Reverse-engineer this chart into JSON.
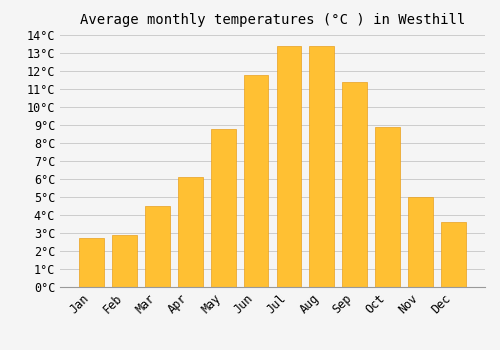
{
  "title": "Average monthly temperatures (°C ) in Westhill",
  "months": [
    "Jan",
    "Feb",
    "Mar",
    "Apr",
    "May",
    "Jun",
    "Jul",
    "Aug",
    "Sep",
    "Oct",
    "Nov",
    "Dec"
  ],
  "values": [
    2.7,
    2.9,
    4.5,
    6.1,
    8.8,
    11.8,
    13.4,
    13.4,
    11.4,
    8.9,
    5.0,
    3.6
  ],
  "bar_color": "#FFC033",
  "bar_edge_color": "#E8A020",
  "background_color": "#F5F5F5",
  "grid_color": "#CCCCCC",
  "ylim": [
    0,
    14
  ],
  "yticks": [
    0,
    1,
    2,
    3,
    4,
    5,
    6,
    7,
    8,
    9,
    10,
    11,
    12,
    13,
    14
  ],
  "title_fontsize": 10,
  "tick_fontsize": 8.5,
  "font_family": "monospace"
}
